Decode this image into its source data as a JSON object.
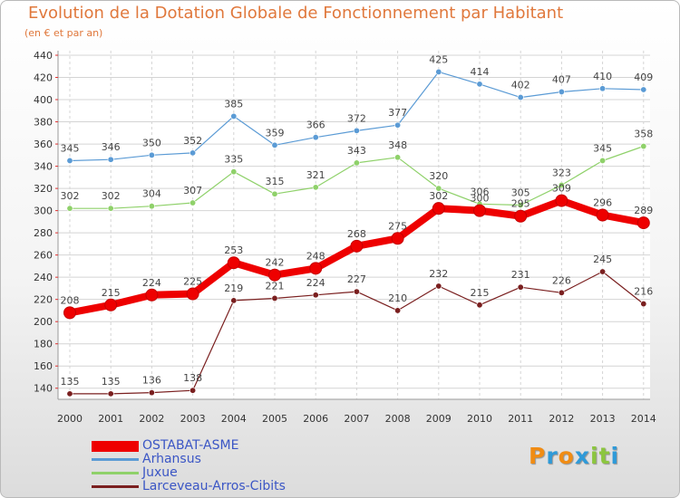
{
  "title": "Evolution de la Dotation Globale de Fonctionnement par Habitant",
  "subtitle": "(en € et par an)",
  "logo": {
    "letters": [
      "P",
      "r",
      "o",
      "x",
      "i",
      "t",
      "i"
    ],
    "colors": [
      "#f08c14",
      "#2f9ad8",
      "#f08c14",
      "#2f9ad8",
      "#8cc63f",
      "#8cc63f",
      "#2f9ad8"
    ]
  },
  "chart_data": {
    "type": "line",
    "title": "Evolution de la Dotation Globale de Fonctionnement par Habitant",
    "subtitle": "(en € et par an)",
    "xlabel": "",
    "ylabel": "",
    "categories": [
      "2000",
      "2001",
      "2002",
      "2003",
      "2004",
      "2005",
      "2006",
      "2007",
      "2008",
      "2009",
      "2010",
      "2011",
      "2012",
      "2013",
      "2014"
    ],
    "ylim": [
      130,
      440
    ],
    "yticks": [
      140,
      160,
      180,
      200,
      220,
      240,
      260,
      280,
      300,
      320,
      340,
      360,
      380,
      400,
      420,
      440
    ],
    "grid": true,
    "legend": "bottom-left",
    "series": [
      {
        "name": "OSTABAT-ASME",
        "color": "#ee0000",
        "values": [
          208,
          215,
          224,
          225,
          253,
          242,
          248,
          268,
          275,
          302,
          300,
          295,
          309,
          296,
          289
        ],
        "labels": [
          "208",
          "215",
          "224",
          "225",
          "253",
          "242",
          "248",
          "268",
          "275",
          "302",
          "300",
          "295",
          "309",
          "296",
          "289"
        ]
      },
      {
        "name": "Arhansus",
        "color": "#5b9bd5",
        "values": [
          345,
          346,
          350,
          352,
          385,
          359,
          366,
          372,
          377,
          425,
          414,
          402,
          407,
          410,
          409
        ],
        "labels": [
          "345",
          "346",
          "350",
          "352",
          "385",
          "359",
          "366",
          "372",
          "377",
          "425",
          "414",
          "402",
          "407",
          "410",
          "409"
        ]
      },
      {
        "name": "Juxue",
        "color": "#8fd16a",
        "values": [
          302,
          302,
          304,
          307,
          335,
          315,
          321,
          343,
          348,
          320,
          306,
          305,
          323,
          345,
          358
        ],
        "labels": [
          "302",
          "302",
          "304",
          "307",
          "335",
          "315",
          "321",
          "343",
          "348",
          "320",
          "306",
          "305",
          "323",
          "345",
          "358"
        ]
      },
      {
        "name": "Larceveau-Arros-Cibits",
        "color": "#7a1f1f",
        "values": [
          135,
          135,
          136,
          138,
          219,
          221,
          224,
          227,
          210,
          232,
          215,
          231,
          226,
          245,
          216
        ],
        "labels": [
          "135",
          "135",
          "136",
          "138",
          "219",
          "221",
          "224",
          "227",
          "210",
          "232",
          "215",
          "231",
          "226",
          "245",
          "216"
        ]
      }
    ]
  }
}
